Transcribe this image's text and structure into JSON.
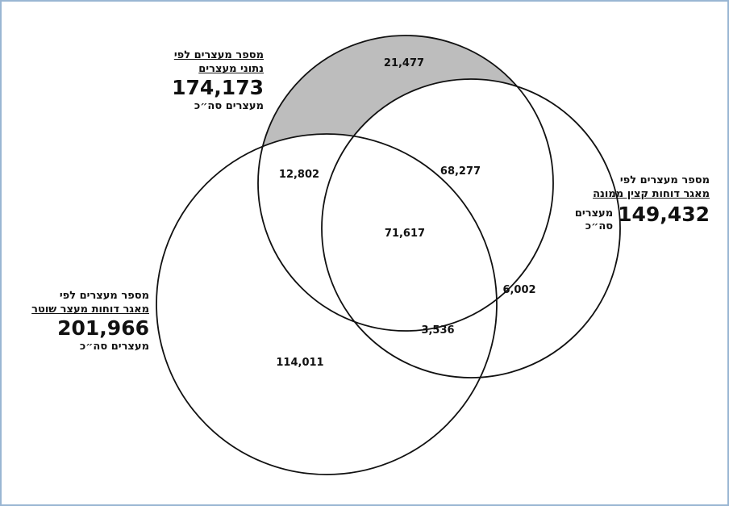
{
  "sets": {
    "detainee_data": {
      "title_line1": "מספר מעצרים לפי",
      "title_line2": "נתוני מעצרים",
      "total": "174,173",
      "unit": "מעצרים סה״כ"
    },
    "officer_reports": {
      "title_line1": "מספר מעצרים לפי",
      "title_line2": "מאגר דוחות קצין ממונה",
      "total": "149,432",
      "unit_line1": "מעצרים",
      "unit_line2": "סה״כ"
    },
    "arresting_officer_reports": {
      "title_line1": "מספר מעצרים לפי",
      "title_line2": "מאגר דוחות מעצר שוטר",
      "total": "201,966",
      "unit": "מעצרים סה״כ"
    }
  },
  "regions": {
    "only_detainee_data": "21,477",
    "detainee_and_arrest": "12,802",
    "detainee_and_officer": "68,277",
    "all_three": "71,617",
    "officer_and_arrest": "3,536",
    "only_officer": "6,002",
    "only_arrest": "114,011"
  },
  "colors": {
    "highlight_fill": "#bdbdbd",
    "stroke": "#111111",
    "frame_border": "#9ab6d3"
  }
}
